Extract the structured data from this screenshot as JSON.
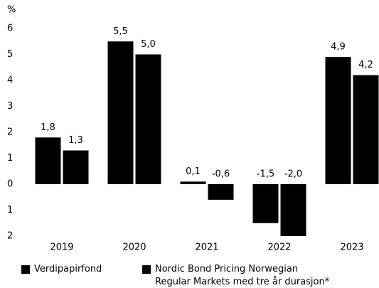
{
  "chart_data": {
    "type": "bar",
    "y_label": "%",
    "categories": [
      "2019",
      "2020",
      "2021",
      "2022",
      "2023"
    ],
    "series": [
      {
        "name": "Verdipapirfond",
        "color": "#000000",
        "values": [
          1.8,
          5.5,
          0.1,
          -1.5,
          4.9
        ],
        "value_labels": [
          "1,8",
          "5,5",
          "0,1",
          "-1,5",
          "4,9"
        ]
      },
      {
        "name": "Nordic Bond Pricing Norwegian Regular Markets med tre år durasjon*",
        "color": "#000000",
        "values": [
          1.3,
          5.0,
          -0.6,
          -2.0,
          4.2
        ],
        "value_labels": [
          "1,3",
          "5,0",
          "-0,6",
          "-2,0",
          "4,2"
        ]
      }
    ],
    "ylim": [
      -2,
      6
    ],
    "yticks": [
      {
        "value": -2,
        "label": "2"
      },
      {
        "value": -1,
        "label": "1"
      },
      0,
      1,
      2,
      3,
      4,
      5,
      6
    ],
    "grid": false,
    "legend": "bottom"
  }
}
